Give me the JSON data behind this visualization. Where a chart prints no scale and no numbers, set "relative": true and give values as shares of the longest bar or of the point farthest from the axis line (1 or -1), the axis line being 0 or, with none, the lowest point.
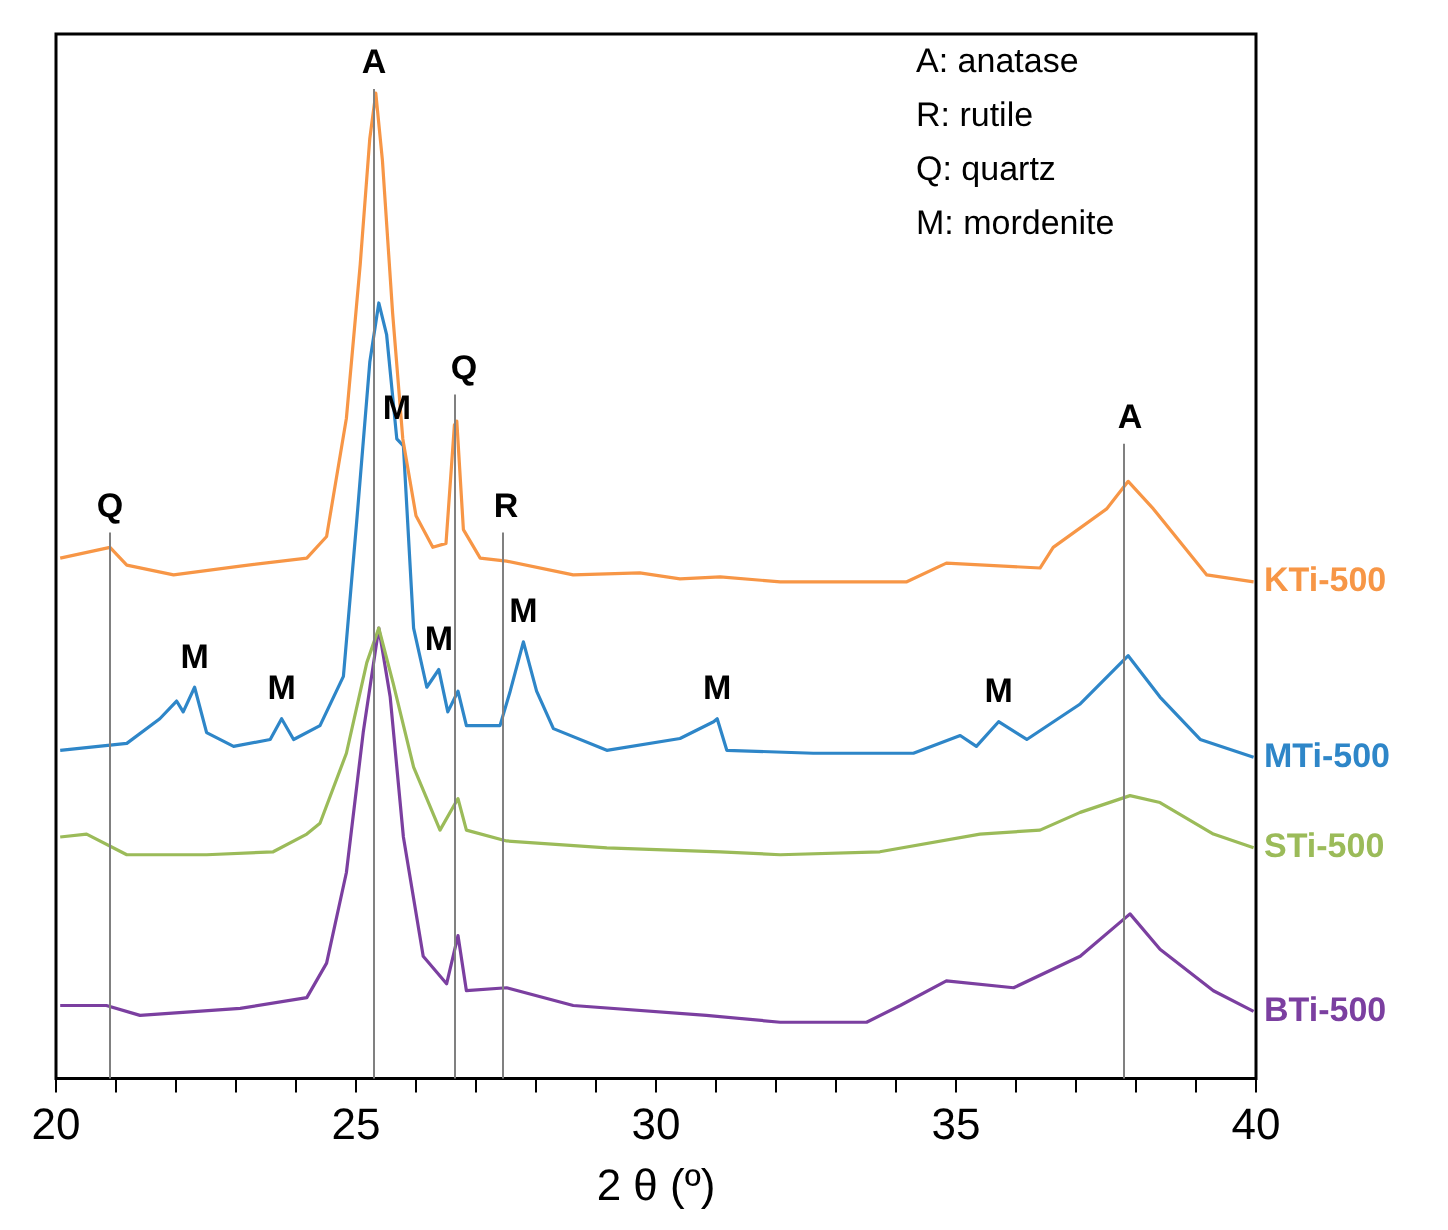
{
  "chart_data": {
    "type": "line",
    "xlabel": "2 θ (º)",
    "relative": true,
    "marker": "none",
    "line_style": "solid",
    "legend": false,
    "grid": false,
    "xlim": [
      20,
      40
    ],
    "xticks": [
      20,
      {
        "value": 21,
        "label": null
      },
      {
        "value": 22,
        "label": null
      },
      {
        "value": 23,
        "label": null
      },
      {
        "value": 24,
        "label": null
      },
      25,
      {
        "value": 26,
        "label": null
      },
      {
        "value": 27,
        "label": null
      },
      {
        "value": 28,
        "label": null
      },
      {
        "value": 29,
        "label": null
      },
      30,
      {
        "value": 31,
        "label": null
      },
      {
        "value": 32,
        "label": null
      },
      {
        "value": 33,
        "label": null
      },
      {
        "value": 34,
        "label": null
      },
      35,
      {
        "value": 36,
        "label": null
      },
      {
        "value": 37,
        "label": null
      },
      {
        "value": 38,
        "label": null
      },
      {
        "value": 39,
        "label": null
      },
      40
    ],
    "series": [
      {
        "name": "KTi-500",
        "color": "#f79646",
        "x": [
          20.07,
          20.9,
          21.18,
          21.96,
          23.07,
          24.18,
          24.51,
          24.84,
          25.07,
          25.23,
          25.33,
          25.44,
          25.61,
          25.78,
          26.0,
          26.28,
          26.5,
          26.64,
          26.68,
          26.79,
          27.07,
          27.51,
          28.62,
          29.73,
          30.4,
          31.07,
          32.07,
          34.18,
          34.84,
          36.4,
          36.62,
          37.51,
          37.87,
          38.29,
          39.18,
          39.96
        ],
        "values": [
          0.528,
          0.539,
          0.521,
          0.511,
          0.52,
          0.528,
          0.55,
          0.67,
          0.826,
          0.954,
          1,
          0.932,
          0.777,
          0.649,
          0.571,
          0.539,
          0.543,
          0.663,
          0.667,
          0.557,
          0.528,
          0.525,
          0.511,
          0.513,
          0.507,
          0.509,
          0.504,
          0.504,
          0.523,
          0.518,
          0.539,
          0.578,
          0.606,
          0.578,
          0.511,
          0.504
        ]
      },
      {
        "name": "MTi-500",
        "color": "#2e86c8",
        "x": [
          20.07,
          21.18,
          21.73,
          22.01,
          22.12,
          22.31,
          22.51,
          22.96,
          23.57,
          23.76,
          23.96,
          24.4,
          24.79,
          25.01,
          25.23,
          25.38,
          25.51,
          25.68,
          25.79,
          25.96,
          26.18,
          26.38,
          26.53,
          26.7,
          26.84,
          27.4,
          27.57,
          27.79,
          28.01,
          28.29,
          29.18,
          30.4,
          30.96,
          31.02,
          31.18,
          32.62,
          34.29,
          35.07,
          35.34,
          35.71,
          36.18,
          37.07,
          37.87,
          38.4,
          39.07,
          39.96
        ],
        "values": [
          0.333,
          0.34,
          0.365,
          0.383,
          0.372,
          0.397,
          0.351,
          0.337,
          0.344,
          0.365,
          0.344,
          0.358,
          0.408,
          0.564,
          0.727,
          0.787,
          0.755,
          0.649,
          0.642,
          0.457,
          0.397,
          0.415,
          0.372,
          0.393,
          0.358,
          0.358,
          0.393,
          0.443,
          0.393,
          0.355,
          0.333,
          0.345,
          0.362,
          0.365,
          0.333,
          0.33,
          0.33,
          0.348,
          0.337,
          0.362,
          0.344,
          0.38,
          0.429,
          0.387,
          0.344,
          0.326
        ]
      },
      {
        "name": "STi-500",
        "color": "#9bbb59",
        "x": [
          20.07,
          20.51,
          21.18,
          22.51,
          23.62,
          24.18,
          24.4,
          24.84,
          25.18,
          25.38,
          25.62,
          25.96,
          26.4,
          26.7,
          26.84,
          27.51,
          29.18,
          31.07,
          32.07,
          33.73,
          35.4,
          36.4,
          37.07,
          37.9,
          38.4,
          39.29,
          39.96
        ],
        "values": [
          0.245,
          0.248,
          0.227,
          0.227,
          0.23,
          0.248,
          0.259,
          0.33,
          0.422,
          0.457,
          0.401,
          0.316,
          0.252,
          0.284,
          0.252,
          0.241,
          0.234,
          0.23,
          0.227,
          0.23,
          0.248,
          0.252,
          0.27,
          0.287,
          0.28,
          0.248,
          0.234
        ]
      },
      {
        "name": "BTi-500",
        "color": "#7b3fa0",
        "x": [
          20.07,
          20.84,
          21.4,
          23.07,
          24.18,
          24.51,
          24.84,
          25.12,
          25.38,
          25.57,
          25.79,
          26.12,
          26.51,
          26.7,
          26.84,
          27.51,
          28.62,
          30.84,
          32.07,
          33.51,
          34.07,
          34.84,
          35.96,
          37.07,
          37.9,
          38.4,
          39.29,
          39.96
        ],
        "values": [
          0.074,
          0.074,
          0.064,
          0.071,
          0.082,
          0.117,
          0.209,
          0.351,
          0.457,
          0.387,
          0.245,
          0.124,
          0.096,
          0.145,
          0.089,
          0.092,
          0.074,
          0.064,
          0.057,
          0.057,
          0.074,
          0.099,
          0.092,
          0.124,
          0.167,
          0.131,
          0.089,
          0.068
        ]
      }
    ],
    "ref_lines": [
      {
        "axis": "x",
        "value": 20.9,
        "color": "#808080"
      },
      {
        "axis": "x",
        "value": 25.3,
        "color": "#808080"
      },
      {
        "axis": "x",
        "value": 26.65,
        "color": "#808080"
      },
      {
        "axis": "x",
        "value": 27.45,
        "color": "#808080"
      },
      {
        "axis": "x",
        "value": 37.8,
        "color": "#808080"
      }
    ],
    "annotations": [
      "A: anatase",
      "R: rutile",
      "Q: quartz",
      "M: mordenite",
      {
        "text": "A",
        "x": 25.3,
        "y": 1.0
      },
      {
        "text": "M",
        "x": 25.68,
        "y": 0.649
      },
      {
        "text": "Q",
        "x": 26.8,
        "y": 0.69
      },
      {
        "text": "Q",
        "x": 20.9,
        "y": 0.55
      },
      {
        "text": "R",
        "x": 27.5,
        "y": 0.55
      },
      {
        "text": "M",
        "x": 27.79,
        "y": 0.443
      },
      {
        "text": "M",
        "x": 26.38,
        "y": 0.415
      },
      {
        "text": "M",
        "x": 22.31,
        "y": 0.397
      },
      {
        "text": "M",
        "x": 23.76,
        "y": 0.365
      },
      {
        "text": "M",
        "x": 31.02,
        "y": 0.365
      },
      {
        "text": "M",
        "x": 35.71,
        "y": 0.362
      },
      {
        "text": "A",
        "x": 37.9,
        "y": 0.64
      }
    ]
  }
}
